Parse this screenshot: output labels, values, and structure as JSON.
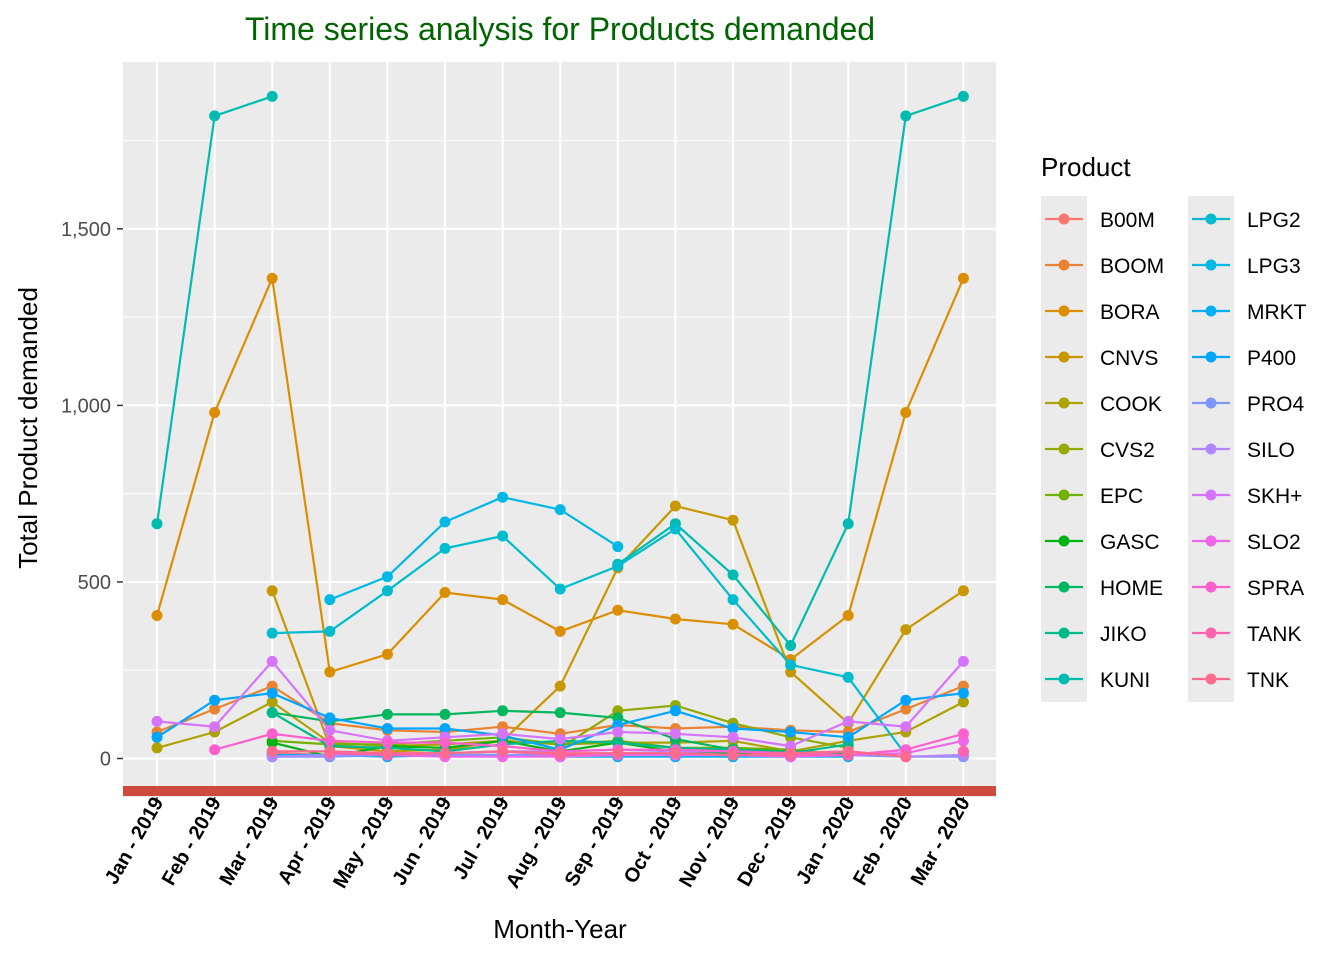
{
  "chart_data": {
    "type": "line",
    "title": "Time series analysis for Products demanded",
    "title_color": "#006400",
    "xlabel": "Month-Year",
    "ylabel": "Total Product demanded",
    "legend_title": "Product",
    "legend_position": "right",
    "grid": true,
    "panel_background": "#EBEBEB",
    "baseline_color": "#CD4A3C",
    "ylim": [
      -90,
      1960
    ],
    "yticks": [
      0,
      500,
      1000,
      1500
    ],
    "ytick_labels": [
      "0",
      "500",
      "1,000",
      "1,500"
    ],
    "x": [
      "Jan - 2019",
      "Feb - 2019",
      "Mar - 2019",
      "Apr - 2019",
      "May - 2019",
      "Jun - 2019",
      "Jul - 2019",
      "Aug - 2019",
      "Sep - 2019",
      "Oct - 2019",
      "Nov - 2019",
      "Dec - 2019",
      "Jan - 2020",
      "Feb - 2020",
      "Mar - 2020"
    ],
    "series": [
      {
        "name": "B00M",
        "color": "#F8766D",
        "values": [
          null,
          null,
          15,
          10,
          8,
          10,
          10,
          8,
          10,
          12,
          10,
          8,
          10,
          null,
          null
        ]
      },
      {
        "name": "BOOM",
        "color": "#EA8331",
        "values": [
          75,
          140,
          205,
          100,
          80,
          75,
          90,
          70,
          95,
          85,
          90,
          80,
          75,
          140,
          205
        ]
      },
      {
        "name": "BORA",
        "color": "#DB8E00",
        "values": [
          405,
          980,
          1360,
          245,
          295,
          470,
          450,
          360,
          420,
          395,
          380,
          280,
          405,
          980,
          1360
        ]
      },
      {
        "name": "CNVS",
        "color": "#C79800",
        "values": [
          null,
          null,
          475,
          35,
          20,
          25,
          50,
          205,
          540,
          715,
          675,
          245,
          100,
          365,
          475
        ]
      },
      {
        "name": "COOK",
        "color": "#AEA200",
        "values": [
          30,
          75,
          160,
          45,
          35,
          40,
          50,
          40,
          45,
          45,
          50,
          20,
          50,
          75,
          160
        ]
      },
      {
        "name": "CVS2",
        "color": "#94AA00",
        "values": [
          null,
          null,
          null,
          null,
          null,
          null,
          null,
          30,
          135,
          150,
          100,
          60,
          30,
          null,
          20
        ]
      },
      {
        "name": "EPC",
        "color": "#72B000",
        "values": [
          null,
          null,
          50,
          40,
          40,
          50,
          60,
          40,
          50,
          30,
          30,
          25,
          10,
          null,
          null
        ]
      },
      {
        "name": "GASC",
        "color": "#00B312",
        "values": [
          null,
          null,
          45,
          5,
          35,
          30,
          50,
          20,
          45,
          20,
          15,
          10,
          15,
          null,
          null
        ]
      },
      {
        "name": "HOME",
        "color": "#00B65E",
        "values": [
          null,
          null,
          130,
          105,
          125,
          125,
          135,
          130,
          115,
          55,
          25,
          20,
          10,
          null,
          null
        ]
      },
      {
        "name": "JIKO",
        "color": "#00BA8A",
        "values": [
          null,
          null,
          130,
          35,
          30,
          20,
          40,
          50,
          45,
          30,
          25,
          15,
          40,
          null,
          null
        ]
      },
      {
        "name": "KUNI",
        "color": "#00BCB0",
        "values": [
          665,
          1820,
          1875,
          null,
          null,
          null,
          null,
          null,
          550,
          665,
          520,
          320,
          665,
          1820,
          1875
        ]
      },
      {
        "name": "LPG2",
        "color": "#00BCCE",
        "values": [
          null,
          null,
          355,
          360,
          475,
          595,
          630,
          480,
          545,
          650,
          450,
          265,
          230,
          10,
          null
        ]
      },
      {
        "name": "LPG3",
        "color": "#00B8E5",
        "values": [
          null,
          null,
          null,
          450,
          515,
          670,
          740,
          705,
          600,
          null,
          null,
          null,
          null,
          null,
          null
        ]
      },
      {
        "name": "MRKT",
        "color": "#00AFF5",
        "values": [
          null,
          null,
          10,
          10,
          5,
          10,
          10,
          5,
          5,
          5,
          5,
          5,
          5,
          null,
          null
        ]
      },
      {
        "name": "P400",
        "color": "#00A5FF",
        "values": [
          60,
          165,
          185,
          115,
          85,
          85,
          65,
          25,
          95,
          135,
          85,
          75,
          60,
          165,
          185
        ]
      },
      {
        "name": "PRO4",
        "color": "#7E97FF",
        "values": [
          null,
          null,
          5,
          5,
          10,
          10,
          10,
          10,
          10,
          10,
          10,
          5,
          10,
          5,
          5
        ]
      },
      {
        "name": "SILO",
        "color": "#B186FF",
        "values": [
          null,
          null,
          5,
          10,
          15,
          15,
          20,
          20,
          25,
          20,
          20,
          15,
          20,
          5,
          10
        ]
      },
      {
        "name": "SKH+",
        "color": "#D674FF",
        "values": [
          105,
          90,
          275,
          80,
          50,
          60,
          70,
          55,
          75,
          70,
          60,
          35,
          105,
          90,
          275
        ]
      },
      {
        "name": "SLO2",
        "color": "#EE67E9",
        "values": [
          null,
          null,
          null,
          20,
          10,
          5,
          5,
          5,
          10,
          10,
          10,
          5,
          10,
          15,
          50
        ]
      },
      {
        "name": "SPRA",
        "color": "#FD60CE",
        "values": [
          null,
          25,
          70,
          50,
          45,
          45,
          35,
          20,
          25,
          25,
          20,
          15,
          10,
          25,
          70
        ]
      },
      {
        "name": "TANK",
        "color": "#FF62AE",
        "values": [
          null,
          null,
          null,
          15,
          10,
          15,
          20,
          10,
          15,
          15,
          10,
          10,
          10,
          null,
          20
        ]
      },
      {
        "name": "TNK",
        "color": "#FF6A8D",
        "values": [
          null,
          null,
          20,
          20,
          15,
          15,
          20,
          15,
          15,
          15,
          10,
          15,
          20,
          5,
          null
        ]
      }
    ]
  }
}
